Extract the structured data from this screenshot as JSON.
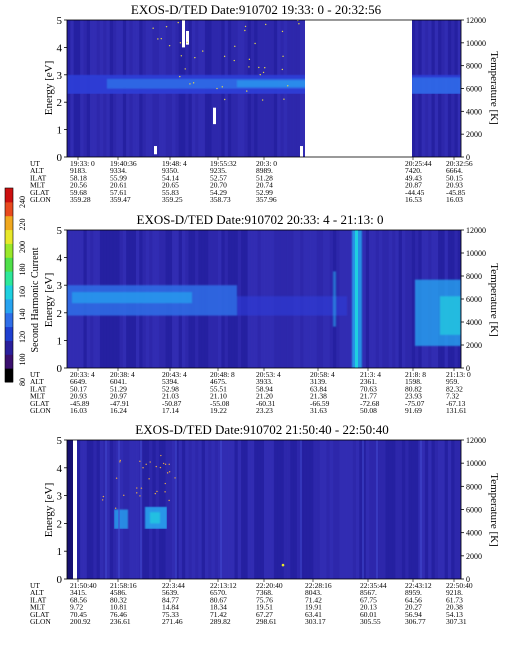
{
  "colorbar": {
    "label": "Second Harmonic Current",
    "ticks": [
      "240",
      "220",
      "200",
      "180",
      "160",
      "140",
      "120",
      "100",
      "80"
    ],
    "colors": [
      "#000000",
      "#3a0f6e",
      "#2a1f9c",
      "#1f3fd0",
      "#2f6ee8",
      "#27a3f0",
      "#1fd0e0",
      "#2ee89a",
      "#4fe04a",
      "#9ae82a",
      "#e8e82a",
      "#f0a81f",
      "#e84a1f",
      "#cc1010"
    ]
  },
  "chart_data": [
    {
      "type": "heatmap",
      "title": "EXOS-D/TED   Date:910702  19:33: 0 - 20:32:56",
      "ylabel": "Energy [eV]",
      "y2label": "Temperature [K]",
      "ylim": [
        0,
        5
      ],
      "yticks": [
        "5",
        "4",
        "3",
        "2",
        "1",
        "0"
      ],
      "y2lim": [
        0,
        12000
      ],
      "y2ticks": [
        "12000",
        "10000",
        "8000",
        "6000",
        "4000",
        "2000",
        "0"
      ],
      "data_gap": {
        "from": "20:3",
        "to": "20:25:44"
      },
      "table_labels": [
        "UT",
        "ALT",
        "ILAT",
        "MLT",
        "GLAT",
        "GLON"
      ],
      "columns": [
        {
          "UT": "19:33: 0",
          "ALT": "9183.",
          "ILAT": "58.18",
          "MLT": "20.56",
          "GLAT": "59.68",
          "GLON": "359.28"
        },
        {
          "UT": "19:40:36",
          "ALT": "9334.",
          "ILAT": "55.99",
          "MLT": "20.61",
          "GLAT": "57.61",
          "GLON": "359.47"
        },
        {
          "UT": "19:48: 4",
          "ALT": "9350.",
          "ILAT": "54.14",
          "MLT": "20.65",
          "GLAT": "55.83",
          "GLON": "359.25"
        },
        {
          "UT": "19:55:32",
          "ALT": "9235.",
          "ILAT": "52.57",
          "MLT": "20.70",
          "GLAT": "54.29",
          "GLON": "358.73"
        },
        {
          "UT": "20:3: 0",
          "ALT": "8989.",
          "ILAT": "51.28",
          "MLT": "20.74",
          "GLAT": "52.99",
          "GLON": "357.96"
        },
        {
          "UT": "20:25:44",
          "ALT": "7420.",
          "ILAT": "49.43",
          "MLT": "20.87",
          "GLAT": "-44.45",
          "GLON": "16.53"
        },
        {
          "UT": "20:32:56",
          "ALT": "6664.",
          "ILAT": "50.15",
          "MLT": "20.93",
          "GLAT": "-45.85",
          "GLON": "16.03"
        }
      ]
    },
    {
      "type": "heatmap",
      "title": "EXOS-D/TED   Date:910702  20:33: 4 - 21:13: 0",
      "ylabel": "Energy [eV]",
      "y2label": "Temperature [K]",
      "ylim": [
        0,
        5
      ],
      "yticks": [
        "5",
        "4",
        "3",
        "2",
        "1",
        "0"
      ],
      "y2lim": [
        0,
        12000
      ],
      "y2ticks": [
        "12000",
        "10000",
        "8000",
        "6000",
        "4000",
        "2000",
        "0"
      ],
      "table_labels": [
        "UT",
        "ALT",
        "ILAT",
        "MLT",
        "GLAT",
        "GLON"
      ],
      "columns": [
        {
          "UT": "20:33: 4",
          "ALT": "6649.",
          "ILAT": "50.17",
          "MLT": "20.93",
          "GLAT": "-45.89",
          "GLON": "16.03"
        },
        {
          "UT": "20:38: 4",
          "ALT": "6041.",
          "ILAT": "51.29",
          "MLT": "20.97",
          "GLAT": "-47.91",
          "GLON": "16.24"
        },
        {
          "UT": "20:43: 4",
          "ALT": "5394.",
          "ILAT": "52.98",
          "MLT": "21.03",
          "GLAT": "-50.87",
          "GLON": "17.14"
        },
        {
          "UT": "20:48: 8",
          "ALT": "4675.",
          "ILAT": "55.51",
          "MLT": "21.10",
          "GLAT": "-55.08",
          "GLON": "19.22"
        },
        {
          "UT": "20:53: 4",
          "ALT": "3933.",
          "ILAT": "58.94",
          "MLT": "21.20",
          "GLAT": "-60.31",
          "GLON": "23.23"
        },
        {
          "UT": "20:58: 4",
          "ALT": "3139.",
          "ILAT": "63.84",
          "MLT": "21.38",
          "GLAT": "-66.59",
          "GLON": "31.63"
        },
        {
          "UT": "21:3: 4",
          "ALT": "2361.",
          "ILAT": "70.63",
          "MLT": "21.77",
          "GLAT": "-72.68",
          "GLON": "50.08"
        },
        {
          "UT": "21:8: 8",
          "ALT": "1598.",
          "ILAT": "80.82",
          "MLT": "23.93",
          "GLAT": "-75.07",
          "GLON": "91.69"
        },
        {
          "UT": "21:13: 0",
          "ALT": "959.",
          "ILAT": "82.32",
          "MLT": "7.32",
          "GLAT": "-67.13",
          "GLON": "131.61"
        }
      ]
    },
    {
      "type": "heatmap",
      "title": "EXOS-D/TED   Date:910702  21:50:40 - 22:50:40",
      "ylabel": "Energy [eV]",
      "y2label": "Temperature [K]",
      "ylim": [
        0,
        5
      ],
      "yticks": [
        "5",
        "4",
        "3",
        "2",
        "1",
        "0"
      ],
      "y2lim": [
        0,
        12000
      ],
      "y2ticks": [
        "12000",
        "10000",
        "8000",
        "6000",
        "4000",
        "2000",
        "0"
      ],
      "table_labels": [
        "UT",
        "ALT",
        "ILAT",
        "MLT",
        "GLAT",
        "GLON"
      ],
      "columns": [
        {
          "UT": "21:50:40",
          "ALT": "3415.",
          "ILAT": "68.56",
          "MLT": "9.72",
          "GLAT": "70.45",
          "GLON": "200.92"
        },
        {
          "UT": "21:58:16",
          "ALT": "4586.",
          "ILAT": "80.32",
          "MLT": "10.81",
          "GLAT": "76.46",
          "GLON": "236.61"
        },
        {
          "UT": "22:3:44",
          "ALT": "5639.",
          "ILAT": "84.77",
          "MLT": "14.84",
          "GLAT": "75.33",
          "GLON": "271.46"
        },
        {
          "UT": "22:13:12",
          "ALT": "6570.",
          "ILAT": "80.67",
          "MLT": "18.34",
          "GLAT": "71.42",
          "GLON": "289.82"
        },
        {
          "UT": "22:20:40",
          "ALT": "7368.",
          "ILAT": "75.76",
          "MLT": "19.51",
          "GLAT": "67.27",
          "GLON": "298.61"
        },
        {
          "UT": "22:28:16",
          "ALT": "8043.",
          "ILAT": "71.42",
          "MLT": "19.91",
          "GLAT": "63.41",
          "GLON": "303.17"
        },
        {
          "UT": "22:35:44",
          "ALT": "8567.",
          "ILAT": "67.75",
          "MLT": "20.13",
          "GLAT": "60.01",
          "GLON": "305.55"
        },
        {
          "UT": "22:43:12",
          "ALT": "8959.",
          "ILAT": "64.56",
          "MLT": "20.27",
          "GLAT": "56.94",
          "GLON": "306.77"
        },
        {
          "UT": "22:50:40",
          "ALT": "9218.",
          "ILAT": "61.73",
          "MLT": "20.38",
          "GLAT": "54.13",
          "GLON": "307.31"
        }
      ]
    }
  ]
}
